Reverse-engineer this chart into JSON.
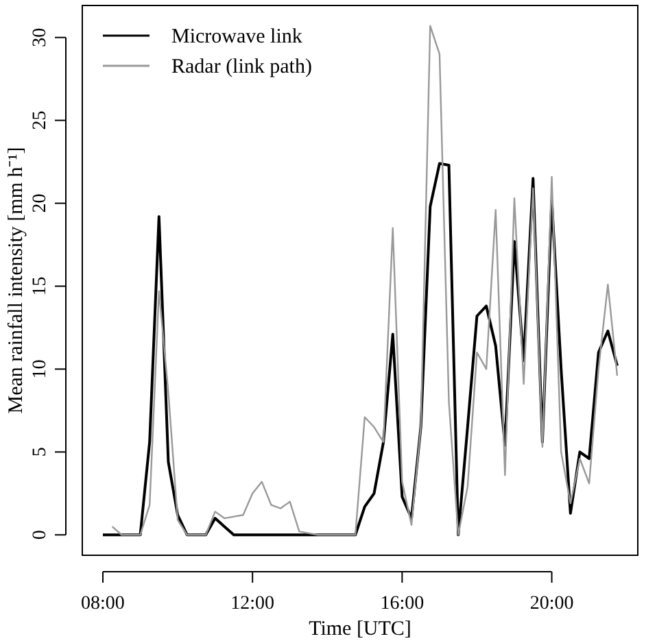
{
  "chart_data": {
    "type": "line",
    "xlabel": "Time [UTC]",
    "ylabel": "Mean rainfall intensity [mm h⁻¹]",
    "x": [
      8,
      8.25,
      8.5,
      8.75,
      9,
      9.25,
      9.5,
      9.75,
      10,
      10.25,
      10.5,
      10.75,
      11,
      11.25,
      11.5,
      11.75,
      12,
      12.25,
      12.5,
      12.75,
      13,
      13.25,
      13.5,
      13.75,
      14,
      14.25,
      14.5,
      14.75,
      15,
      15.25,
      15.5,
      15.75,
      16,
      16.25,
      16.5,
      16.75,
      17,
      17.25,
      17.5,
      17.75,
      18,
      18.25,
      18.5,
      18.75,
      19,
      19.25,
      19.5,
      19.75,
      20,
      20.25,
      20.5,
      20.75,
      21,
      21.25,
      21.5,
      21.75
    ],
    "series": [
      {
        "name": "Microwave link",
        "color": "#000000",
        "values": [
          0,
          0,
          0,
          0,
          0,
          5.6,
          19.2,
          4.4,
          1.2,
          0,
          0,
          0,
          1.0,
          0.5,
          0,
          0,
          0,
          0,
          0,
          0,
          0,
          0,
          0,
          0,
          0,
          0,
          0,
          0,
          1.7,
          2.5,
          5.6,
          12.1,
          2.3,
          1.0,
          6.5,
          19.8,
          22.4,
          22.3,
          0,
          6.5,
          13.2,
          13.8,
          11.4,
          5.4,
          17.7,
          10.5,
          21.5,
          5.6,
          20.2,
          10.0,
          1.3,
          5.0,
          4.6,
          11.0,
          12.3,
          10.2
        ]
      },
      {
        "name": "Radar (link path)",
        "color": "#999999",
        "values": [
          null,
          0.5,
          0,
          0,
          0,
          1.8,
          14.7,
          8.6,
          0.9,
          0,
          0,
          0,
          1.4,
          1.0,
          1.1,
          1.2,
          2.5,
          3.2,
          1.8,
          1.6,
          2.0,
          0.2,
          0.1,
          0,
          0,
          0,
          0,
          0,
          7.1,
          6.5,
          5.6,
          18.5,
          3.2,
          0.6,
          6.5,
          30.7,
          29.0,
          8.0,
          0,
          2.9,
          11.0,
          10.0,
          19.6,
          3.6,
          20.3,
          9.1,
          20.9,
          5.3,
          21.6,
          5.0,
          1.9,
          4.6,
          3.1,
          10.0,
          15.1,
          9.6
        ]
      }
    ],
    "xlim": [
      7.45,
      22.3
    ],
    "xticks": [
      {
        "value": 8,
        "label": "08:00"
      },
      {
        "value": 12,
        "label": "12:00"
      },
      {
        "value": 16,
        "label": "16:00"
      },
      {
        "value": 20,
        "label": "20:00"
      }
    ],
    "ylim": [
      -1.23,
      31.93
    ],
    "yticks": [
      0,
      5,
      10,
      15,
      20,
      25,
      30
    ],
    "legend": "top left",
    "line_style": "solid"
  }
}
